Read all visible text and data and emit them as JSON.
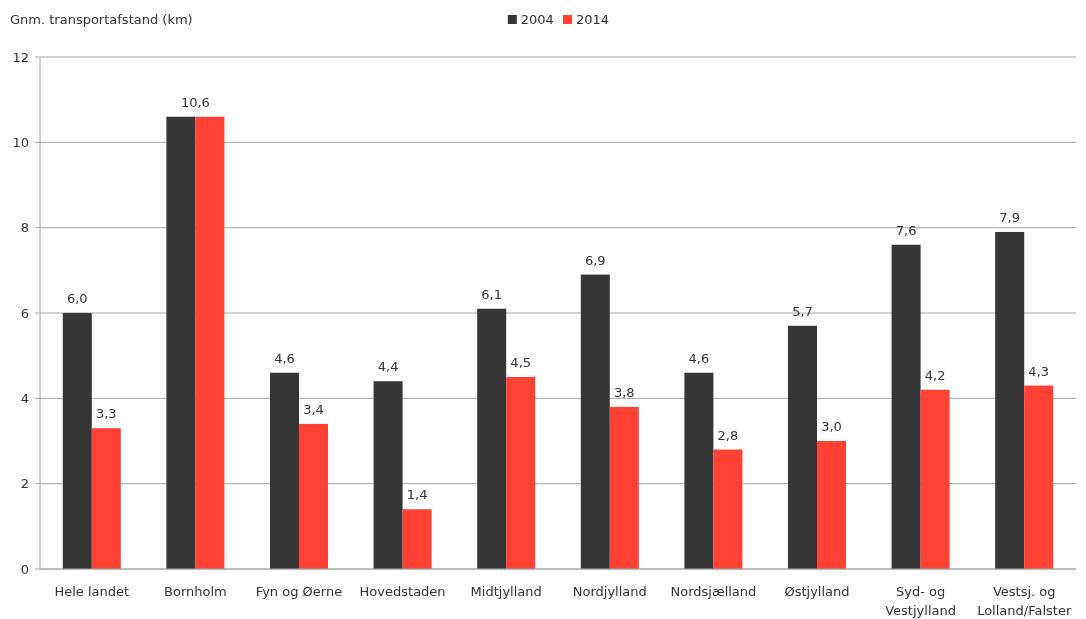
{
  "chart_data": {
    "type": "bar",
    "ylabel": "Gnm. transportafstand (km)",
    "categories": [
      "Hele landet",
      "Bornholm",
      "Fyn og Øerne",
      "Hovedstaden",
      "Midtjylland",
      "Nordjylland",
      "Nordsjælland",
      "Østjylland",
      "Syd- og Vestjylland",
      "Vestsj. og Lolland/Falster"
    ],
    "series": [
      {
        "name": "2004",
        "color": "#363636",
        "values": [
          6.0,
          10.6,
          4.6,
          4.4,
          6.1,
          6.9,
          4.6,
          5.7,
          7.6,
          7.9
        ],
        "value_labels": [
          "6,0",
          "10,6",
          "4,6",
          "4,4",
          "6,1",
          "6,9",
          "4,6",
          "5,7",
          "7,6",
          "7,9"
        ]
      },
      {
        "name": "2014",
        "color": "#ff4136",
        "values": [
          3.3,
          10.6,
          3.4,
          1.4,
          4.5,
          3.8,
          2.8,
          3.0,
          4.2,
          4.3
        ],
        "value_labels": [
          "3,3",
          null,
          "3,4",
          "1,4",
          "4,5",
          "3,8",
          "2,8",
          "3,0",
          "4,2",
          "4,3"
        ]
      }
    ],
    "ylim": [
      0,
      12
    ],
    "yticks": [
      0,
      2,
      4,
      6,
      8,
      10,
      12
    ],
    "grid": "y",
    "legend": "top"
  }
}
